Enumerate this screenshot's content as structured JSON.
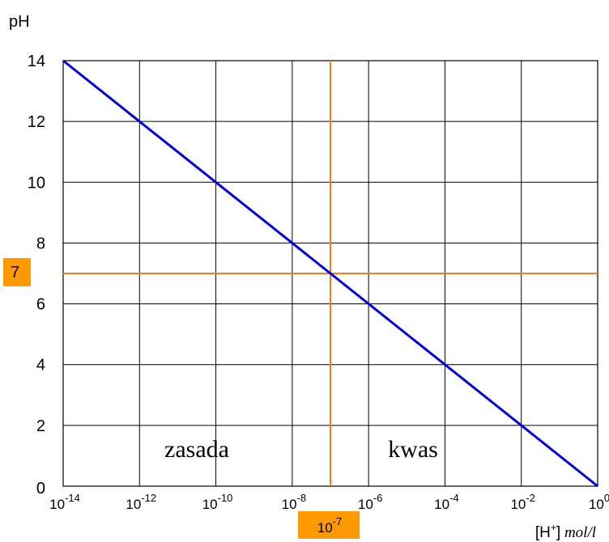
{
  "chart_data": {
    "type": "line",
    "title": "",
    "ylabel": "pH",
    "xlabel": {
      "base": "[H",
      "sup": "+",
      "close": "]",
      "unit": "mol/l"
    },
    "x_scale": "log10",
    "x_range_exponents": [
      -14,
      0
    ],
    "ylim": [
      0,
      14
    ],
    "grid": true,
    "x_ticks": [
      {
        "base": "10",
        "exp": "-14"
      },
      {
        "base": "10",
        "exp": "-12"
      },
      {
        "base": "10",
        "exp": "-10"
      },
      {
        "base": "10",
        "exp": "-8"
      },
      {
        "base": "10",
        "exp": "-6"
      },
      {
        "base": "10",
        "exp": "-4"
      },
      {
        "base": "10",
        "exp": "-2"
      },
      {
        "base": "10",
        "exp": "0"
      }
    ],
    "y_ticks": [
      "0",
      "2",
      "4",
      "6",
      "8",
      "10",
      "12",
      "14"
    ],
    "series": [
      {
        "color": "#0000dd",
        "points": [
          {
            "x": "10^-14",
            "y": 14
          },
          {
            "x": "10^-12",
            "y": 12
          },
          {
            "x": "10^-10",
            "y": 10
          },
          {
            "x": "10^-8",
            "y": 8
          },
          {
            "x": "10^-7",
            "y": 7
          },
          {
            "x": "10^-6",
            "y": 6
          },
          {
            "x": "10^-4",
            "y": 4
          },
          {
            "x": "10^-2",
            "y": 2
          },
          {
            "x": "10^0",
            "y": 0
          }
        ]
      }
    ],
    "reference_lines": {
      "color": "#f47b20",
      "neutral_ph": "7",
      "neutral_conc": {
        "base": "10",
        "exp": "-7"
      }
    },
    "annotations": {
      "base_region": "zasada",
      "acid_region": "kwas"
    },
    "highlight_color": "#ff9900"
  }
}
